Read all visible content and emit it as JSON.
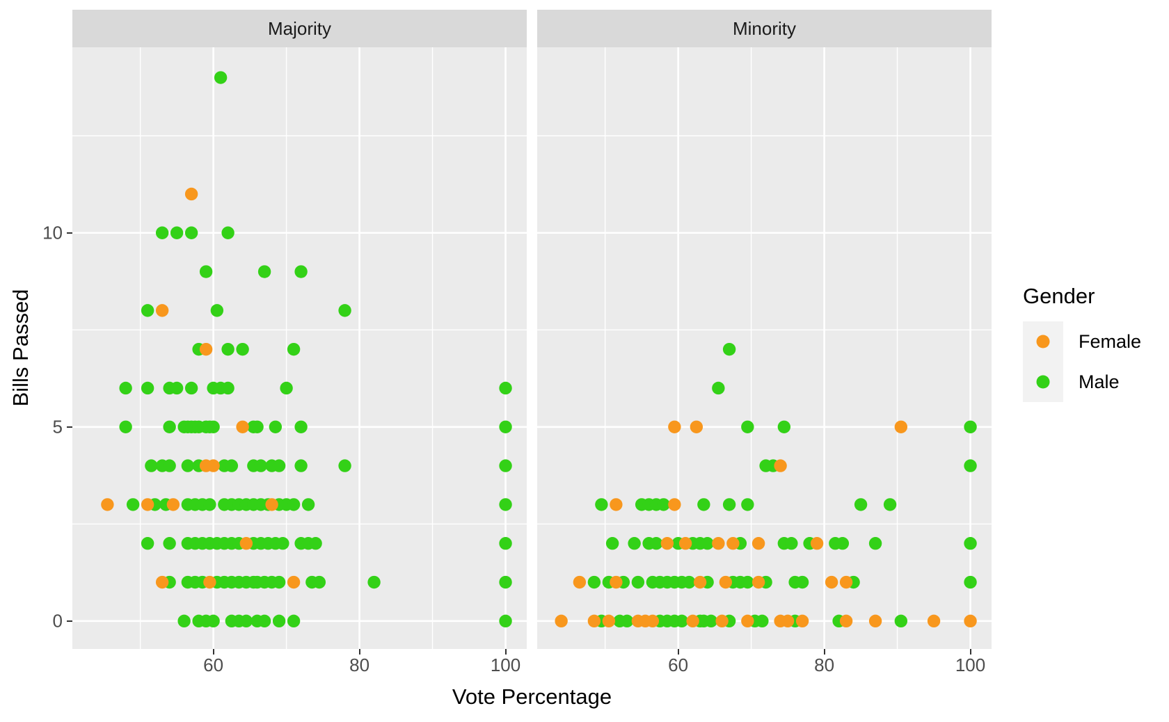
{
  "facets": {
    "left_label": "Majority",
    "right_label": "Minority"
  },
  "axis_titles": {
    "x": "Vote Percentage",
    "y": "Bills Passed"
  },
  "legend": {
    "title": "Gender",
    "items": [
      {
        "label": "Female",
        "color": "#F8971D"
      },
      {
        "label": "Male",
        "color": "#33D117"
      }
    ]
  },
  "colors": {
    "panel_background": "#EBEBEB",
    "strip_background": "#D9D9D9",
    "gridline": "#FFFFFF",
    "tick_text": "#4D4D4D",
    "female": "#F8971D",
    "male": "#33D117"
  },
  "chart_data": {
    "type": "scatter",
    "title": "",
    "xlabel": "Vote Percentage",
    "ylabel": "Bills Passed",
    "facet_labels": [
      "Majority",
      "Minority"
    ],
    "legend_title": "Gender",
    "legend_position": "right",
    "grid": true,
    "x_domain": [
      40.7,
      102.9
    ],
    "y_domain": [
      -0.72,
      14.78
    ],
    "x_major_ticks": [
      60,
      80,
      100
    ],
    "x_minor_gridlines": [
      50,
      70,
      90
    ],
    "y_major_ticks": [
      0,
      5,
      10
    ],
    "y_minor_gridlines": [
      2.5,
      7.5,
      12.5
    ],
    "point_radius_px": 9.2,
    "series": [
      {
        "facet": "Majority",
        "name": "Male",
        "color": "#33D117",
        "points": [
          [
            56,
            0
          ],
          [
            58,
            0
          ],
          [
            59,
            0
          ],
          [
            60,
            0
          ],
          [
            62.5,
            0
          ],
          [
            63.5,
            0
          ],
          [
            64.5,
            0
          ],
          [
            66,
            0
          ],
          [
            67,
            0
          ],
          [
            69,
            0
          ],
          [
            71,
            0
          ],
          [
            100,
            0
          ],
          [
            54,
            1
          ],
          [
            56.5,
            1
          ],
          [
            57.5,
            1
          ],
          [
            58.5,
            1
          ],
          [
            60.5,
            1
          ],
          [
            61.5,
            1
          ],
          [
            62.5,
            1
          ],
          [
            63.5,
            1
          ],
          [
            64.5,
            1
          ],
          [
            65.5,
            1
          ],
          [
            66,
            1
          ],
          [
            67,
            1
          ],
          [
            68,
            1
          ],
          [
            69,
            1
          ],
          [
            73.5,
            1
          ],
          [
            74.5,
            1
          ],
          [
            82,
            1
          ],
          [
            100,
            1
          ],
          [
            51,
            2
          ],
          [
            54,
            2
          ],
          [
            56.5,
            2
          ],
          [
            57.5,
            2
          ],
          [
            58.5,
            2
          ],
          [
            59.5,
            2
          ],
          [
            60.5,
            2
          ],
          [
            61.5,
            2
          ],
          [
            62.5,
            2
          ],
          [
            63.5,
            2
          ],
          [
            65.5,
            2
          ],
          [
            66.5,
            2
          ],
          [
            67.5,
            2
          ],
          [
            68.5,
            2
          ],
          [
            69.5,
            2
          ],
          [
            72,
            2
          ],
          [
            73,
            2
          ],
          [
            74,
            2
          ],
          [
            100,
            2
          ],
          [
            49,
            3
          ],
          [
            52,
            3
          ],
          [
            53.5,
            3
          ],
          [
            56.5,
            3
          ],
          [
            57.5,
            3
          ],
          [
            58.5,
            3
          ],
          [
            59.5,
            3
          ],
          [
            61.5,
            3
          ],
          [
            62.5,
            3
          ],
          [
            63.5,
            3
          ],
          [
            64.5,
            3
          ],
          [
            65.5,
            3
          ],
          [
            66.5,
            3
          ],
          [
            67.5,
            3
          ],
          [
            69,
            3
          ],
          [
            70,
            3
          ],
          [
            71,
            3
          ],
          [
            73,
            3
          ],
          [
            100,
            3
          ],
          [
            51.5,
            4
          ],
          [
            53,
            4
          ],
          [
            54,
            4
          ],
          [
            56.5,
            4
          ],
          [
            58,
            4
          ],
          [
            61.5,
            4
          ],
          [
            62.5,
            4
          ],
          [
            65.5,
            4
          ],
          [
            66.5,
            4
          ],
          [
            68,
            4
          ],
          [
            69,
            4
          ],
          [
            72,
            4
          ],
          [
            78,
            4
          ],
          [
            100,
            4
          ],
          [
            48,
            5
          ],
          [
            54,
            5
          ],
          [
            56,
            5
          ],
          [
            56.5,
            5
          ],
          [
            57,
            5
          ],
          [
            57.5,
            5
          ],
          [
            58,
            5
          ],
          [
            59,
            5
          ],
          [
            59.5,
            5
          ],
          [
            60,
            5
          ],
          [
            65.5,
            5
          ],
          [
            66,
            5
          ],
          [
            68.5,
            5
          ],
          [
            72,
            5
          ],
          [
            100,
            5
          ],
          [
            48,
            6
          ],
          [
            51,
            6
          ],
          [
            54,
            6
          ],
          [
            55,
            6
          ],
          [
            57,
            6
          ],
          [
            60,
            6
          ],
          [
            61,
            6
          ],
          [
            62,
            6
          ],
          [
            70,
            6
          ],
          [
            100,
            6
          ],
          [
            58,
            7
          ],
          [
            62,
            7
          ],
          [
            64,
            7
          ],
          [
            71,
            7
          ],
          [
            51,
            8
          ],
          [
            60.5,
            8
          ],
          [
            78,
            8
          ],
          [
            59,
            9
          ],
          [
            67,
            9
          ],
          [
            72,
            9
          ],
          [
            53,
            10
          ],
          [
            55,
            10
          ],
          [
            57,
            10
          ],
          [
            62,
            10
          ],
          [
            61,
            14
          ]
        ]
      },
      {
        "facet": "Majority",
        "name": "Female",
        "color": "#F8971D",
        "points": [
          [
            53,
            1
          ],
          [
            59.5,
            1
          ],
          [
            71,
            1
          ],
          [
            64.5,
            2
          ],
          [
            45.5,
            3
          ],
          [
            51,
            3
          ],
          [
            54.5,
            3
          ],
          [
            68,
            3
          ],
          [
            59,
            4
          ],
          [
            60,
            4
          ],
          [
            64,
            5
          ],
          [
            59,
            7
          ],
          [
            53,
            8
          ],
          [
            57,
            11
          ]
        ]
      },
      {
        "facet": "Minority",
        "name": "Male",
        "color": "#33D117",
        "points": [
          [
            49.5,
            0
          ],
          [
            52,
            0
          ],
          [
            53,
            0
          ],
          [
            57.5,
            0
          ],
          [
            58.5,
            0
          ],
          [
            59.5,
            0
          ],
          [
            60.5,
            0
          ],
          [
            63,
            0
          ],
          [
            63.5,
            0
          ],
          [
            64.5,
            0
          ],
          [
            67,
            0
          ],
          [
            70.5,
            0
          ],
          [
            71.5,
            0
          ],
          [
            76,
            0
          ],
          [
            82,
            0
          ],
          [
            90.5,
            0
          ],
          [
            48.5,
            1
          ],
          [
            50.5,
            1
          ],
          [
            52.5,
            1
          ],
          [
            54.5,
            1
          ],
          [
            56.5,
            1
          ],
          [
            57.5,
            1
          ],
          [
            58.5,
            1
          ],
          [
            59.5,
            1
          ],
          [
            60.5,
            1
          ],
          [
            61.5,
            1
          ],
          [
            64,
            1
          ],
          [
            67.5,
            1
          ],
          [
            68.5,
            1
          ],
          [
            69.5,
            1
          ],
          [
            72,
            1
          ],
          [
            76,
            1
          ],
          [
            77,
            1
          ],
          [
            84,
            1
          ],
          [
            100,
            1
          ],
          [
            51,
            2
          ],
          [
            54,
            2
          ],
          [
            56,
            2
          ],
          [
            57,
            2
          ],
          [
            60,
            2
          ],
          [
            62,
            2
          ],
          [
            63,
            2
          ],
          [
            64,
            2
          ],
          [
            68.5,
            2
          ],
          [
            74.5,
            2
          ],
          [
            75.5,
            2
          ],
          [
            78,
            2
          ],
          [
            81.5,
            2
          ],
          [
            82.5,
            2
          ],
          [
            87,
            2
          ],
          [
            100,
            2
          ],
          [
            49.5,
            3
          ],
          [
            55,
            3
          ],
          [
            56,
            3
          ],
          [
            57,
            3
          ],
          [
            58,
            3
          ],
          [
            63.5,
            3
          ],
          [
            67,
            3
          ],
          [
            69.5,
            3
          ],
          [
            85,
            3
          ],
          [
            89,
            3
          ],
          [
            72,
            4
          ],
          [
            73,
            4
          ],
          [
            100,
            4
          ],
          [
            69.5,
            5
          ],
          [
            74.5,
            5
          ],
          [
            100,
            5
          ],
          [
            65.5,
            6
          ],
          [
            67,
            7
          ]
        ]
      },
      {
        "facet": "Minority",
        "name": "Female",
        "color": "#F8971D",
        "points": [
          [
            44,
            0
          ],
          [
            48.5,
            0
          ],
          [
            50.5,
            0
          ],
          [
            54.5,
            0
          ],
          [
            55.5,
            0
          ],
          [
            56.5,
            0
          ],
          [
            62,
            0
          ],
          [
            66,
            0
          ],
          [
            69.5,
            0
          ],
          [
            74,
            0
          ],
          [
            75,
            0
          ],
          [
            77,
            0
          ],
          [
            83,
            0
          ],
          [
            87,
            0
          ],
          [
            95,
            0
          ],
          [
            100,
            0
          ],
          [
            46.5,
            1
          ],
          [
            51.5,
            1
          ],
          [
            63,
            1
          ],
          [
            66.5,
            1
          ],
          [
            71,
            1
          ],
          [
            81,
            1
          ],
          [
            83,
            1
          ],
          [
            58.5,
            2
          ],
          [
            61,
            2
          ],
          [
            65.5,
            2
          ],
          [
            67.5,
            2
          ],
          [
            71,
            2
          ],
          [
            79,
            2
          ],
          [
            51.5,
            3
          ],
          [
            59.5,
            3
          ],
          [
            74,
            4
          ],
          [
            59.5,
            5
          ],
          [
            62.5,
            5
          ],
          [
            90.5,
            5
          ]
        ]
      }
    ]
  }
}
